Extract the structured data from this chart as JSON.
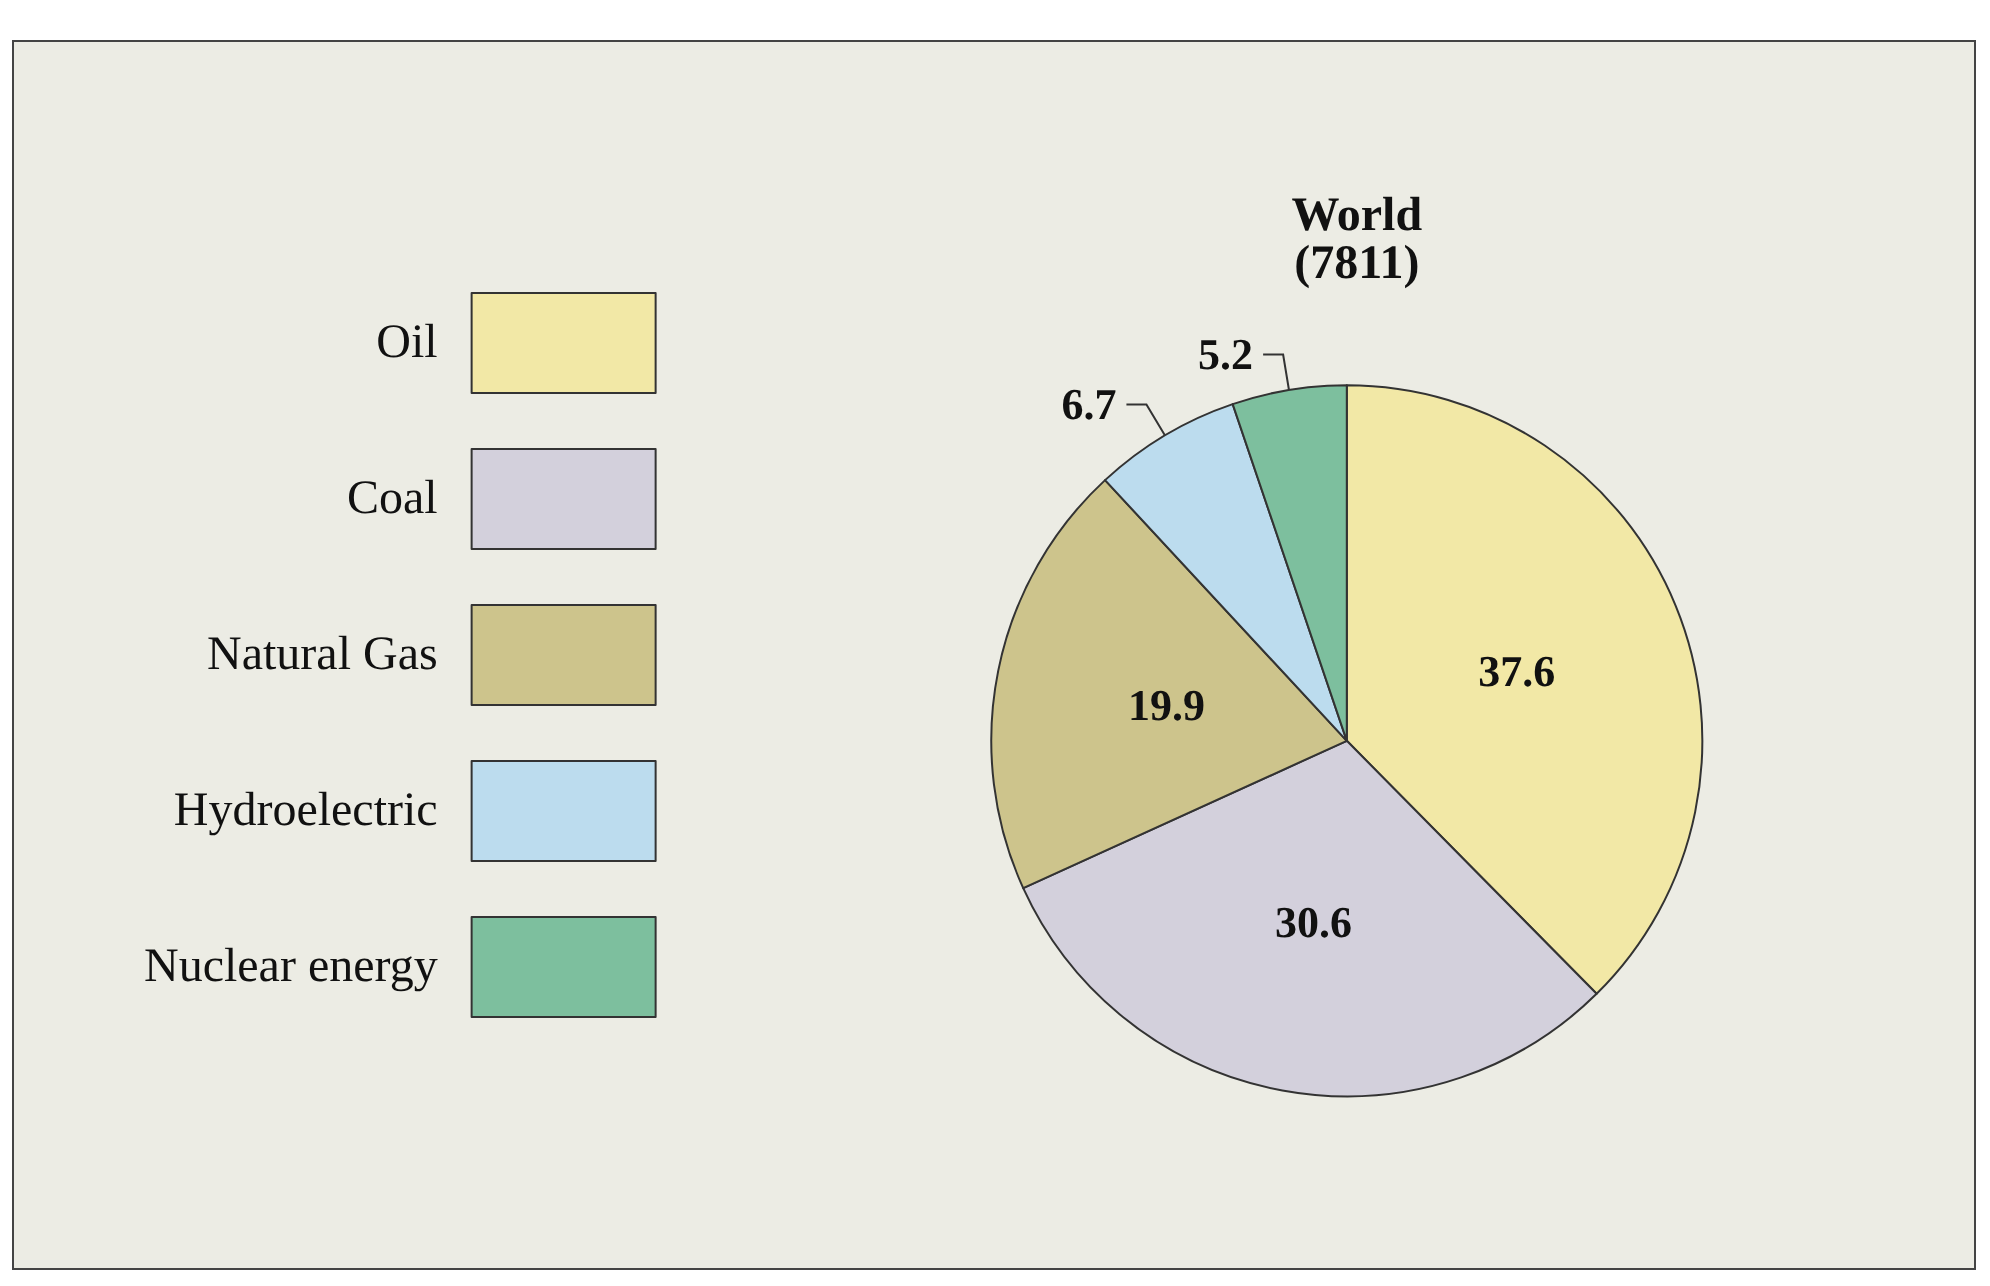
{
  "chart_data": {
    "type": "pie",
    "title": "World",
    "subtitle": "(7811)",
    "categories": [
      "Oil",
      "Coal",
      "Natural Gas",
      "Hydroelectric",
      "Nuclear energy"
    ],
    "values": [
      37.6,
      30.6,
      19.9,
      6.7,
      5.2
    ],
    "colors": [
      "#f2e8a6",
      "#d3d0dc",
      "#cdc48c",
      "#bcdcee",
      "#7dbf9e"
    ],
    "data_labels": true,
    "legend": "left"
  }
}
